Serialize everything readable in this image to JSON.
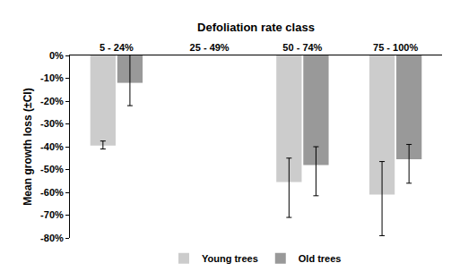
{
  "chart_data": {
    "type": "bar",
    "x_label": "Defoliation rate class",
    "y_label": "Mean growth loss (±CI)",
    "categories": [
      "5 - 24%",
      "25 - 49%",
      "50 - 74%",
      "75 - 100%"
    ],
    "series": [
      {
        "name": "Young trees",
        "color": "#cccccc",
        "values": [
          -39.5,
          null,
          -55.5,
          -61
        ],
        "error_upper": [
          2,
          null,
          10.5,
          14.5
        ],
        "error_lower": [
          1.5,
          null,
          15.5,
          18
        ]
      },
      {
        "name": "Old trees",
        "color": "#999999",
        "values": [
          -12,
          null,
          -48,
          -45.5
        ],
        "error_upper": [
          13.5,
          null,
          8,
          6.5
        ],
        "error_lower": [
          10,
          null,
          13.5,
          10.5
        ]
      }
    ],
    "ylim": [
      -80,
      0
    ],
    "yticks": [
      {
        "value": 0,
        "label": "0%"
      },
      {
        "value": -10,
        "label": "-10%"
      },
      {
        "value": -20,
        "label": "-20%"
      },
      {
        "value": -30,
        "label": "-30%"
      },
      {
        "value": -40,
        "label": "-40%"
      },
      {
        "value": -50,
        "label": "-50%"
      },
      {
        "value": -60,
        "label": "-60%"
      },
      {
        "value": -70,
        "label": "-70%"
      },
      {
        "value": -80,
        "label": "-80%"
      }
    ],
    "grid": false,
    "legend": "bottom"
  }
}
